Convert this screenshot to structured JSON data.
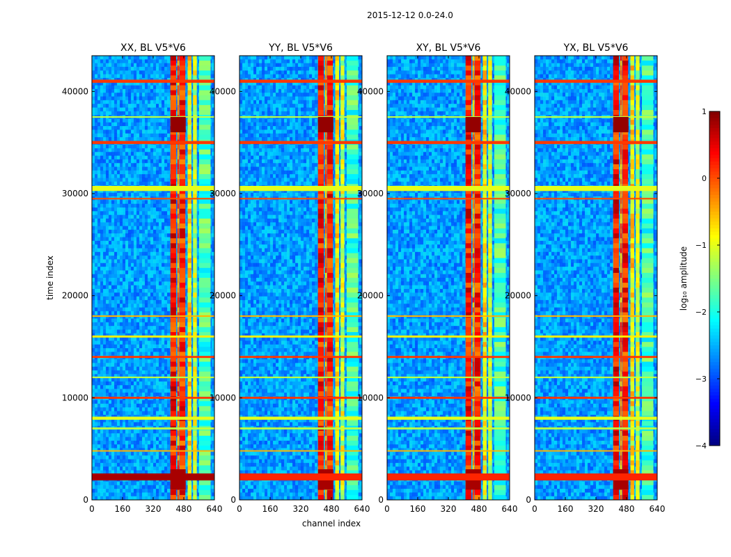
{
  "suptitle": "2015-12-12 0.0-24.0",
  "chart_data": {
    "type": "heatmap",
    "xlabel": "channel index",
    "ylabel": "time index",
    "xlim": [
      0,
      640
    ],
    "ylim": [
      0,
      43500
    ],
    "xticks": [
      0,
      160,
      320,
      480,
      640
    ],
    "yticks": [
      0,
      10000,
      20000,
      30000,
      40000
    ],
    "panels": [
      {
        "title": "XX, BL V5*V6",
        "pol": "XX",
        "show_yticklabels": true
      },
      {
        "title": "YY, BL V5*V6",
        "pol": "YY",
        "show_yticklabels": true
      },
      {
        "title": "XY, BL V5*V6",
        "pol": "XY",
        "show_yticklabels": true
      },
      {
        "title": "YX, BL V5*V6",
        "pol": "YX",
        "show_yticklabels": true
      }
    ],
    "colorbar": {
      "label": "log₁₀ amplitude",
      "min": -4,
      "max": 1,
      "ticks": [
        1,
        0,
        -1,
        -2,
        -3,
        -4
      ],
      "colormap": "jet"
    },
    "bright_channel_bands": [
      {
        "channels": [
          410,
          440
        ],
        "log_amp": 0.3
      },
      {
        "channels": [
          446,
          456
        ],
        "log_amp": -0.2
      },
      {
        "channels": [
          458,
          488
        ],
        "log_amp": 0.2
      },
      {
        "channels": [
          500,
          520
        ],
        "log_amp": -0.8
      },
      {
        "channels": [
          528,
          548
        ],
        "log_amp": -1.1
      },
      {
        "channels": [
          560,
          620
        ],
        "log_amp": -1.8
      }
    ],
    "rfi_time_rows": [
      {
        "time": 41000,
        "log_amp": 0.1,
        "width": 300
      },
      {
        "time": 37500,
        "log_amp": -1.2,
        "width": 150
      },
      {
        "time": 35000,
        "log_amp": 0.1,
        "width": 300
      },
      {
        "time": 30500,
        "log_amp": -1.0,
        "width": 500
      },
      {
        "time": 29500,
        "log_amp": 0.0,
        "width": 150
      },
      {
        "time": 18000,
        "log_amp": -0.5,
        "width": 100
      },
      {
        "time": 16000,
        "log_amp": -0.8,
        "width": 200
      },
      {
        "time": 14000,
        "log_amp": 0.1,
        "width": 200
      },
      {
        "time": 12000,
        "log_amp": -1.2,
        "width": 150
      },
      {
        "time": 10000,
        "log_amp": 0.1,
        "width": 200
      },
      {
        "time": 8000,
        "log_amp": -1.0,
        "width": 300
      },
      {
        "time": 7000,
        "log_amp": -1.2,
        "width": 200
      },
      {
        "time": 4800,
        "log_amp": -0.5,
        "width": 100
      }
    ],
    "hotspots": [
      {
        "channels": [
          410,
          490
        ],
        "time": [
          36000,
          37500
        ],
        "log_amp": 0.9
      },
      {
        "channels": [
          410,
          490
        ],
        "time": [
          1000,
          3000
        ],
        "log_amp": 0.8
      }
    ],
    "background_log_amp": -2.6
  }
}
